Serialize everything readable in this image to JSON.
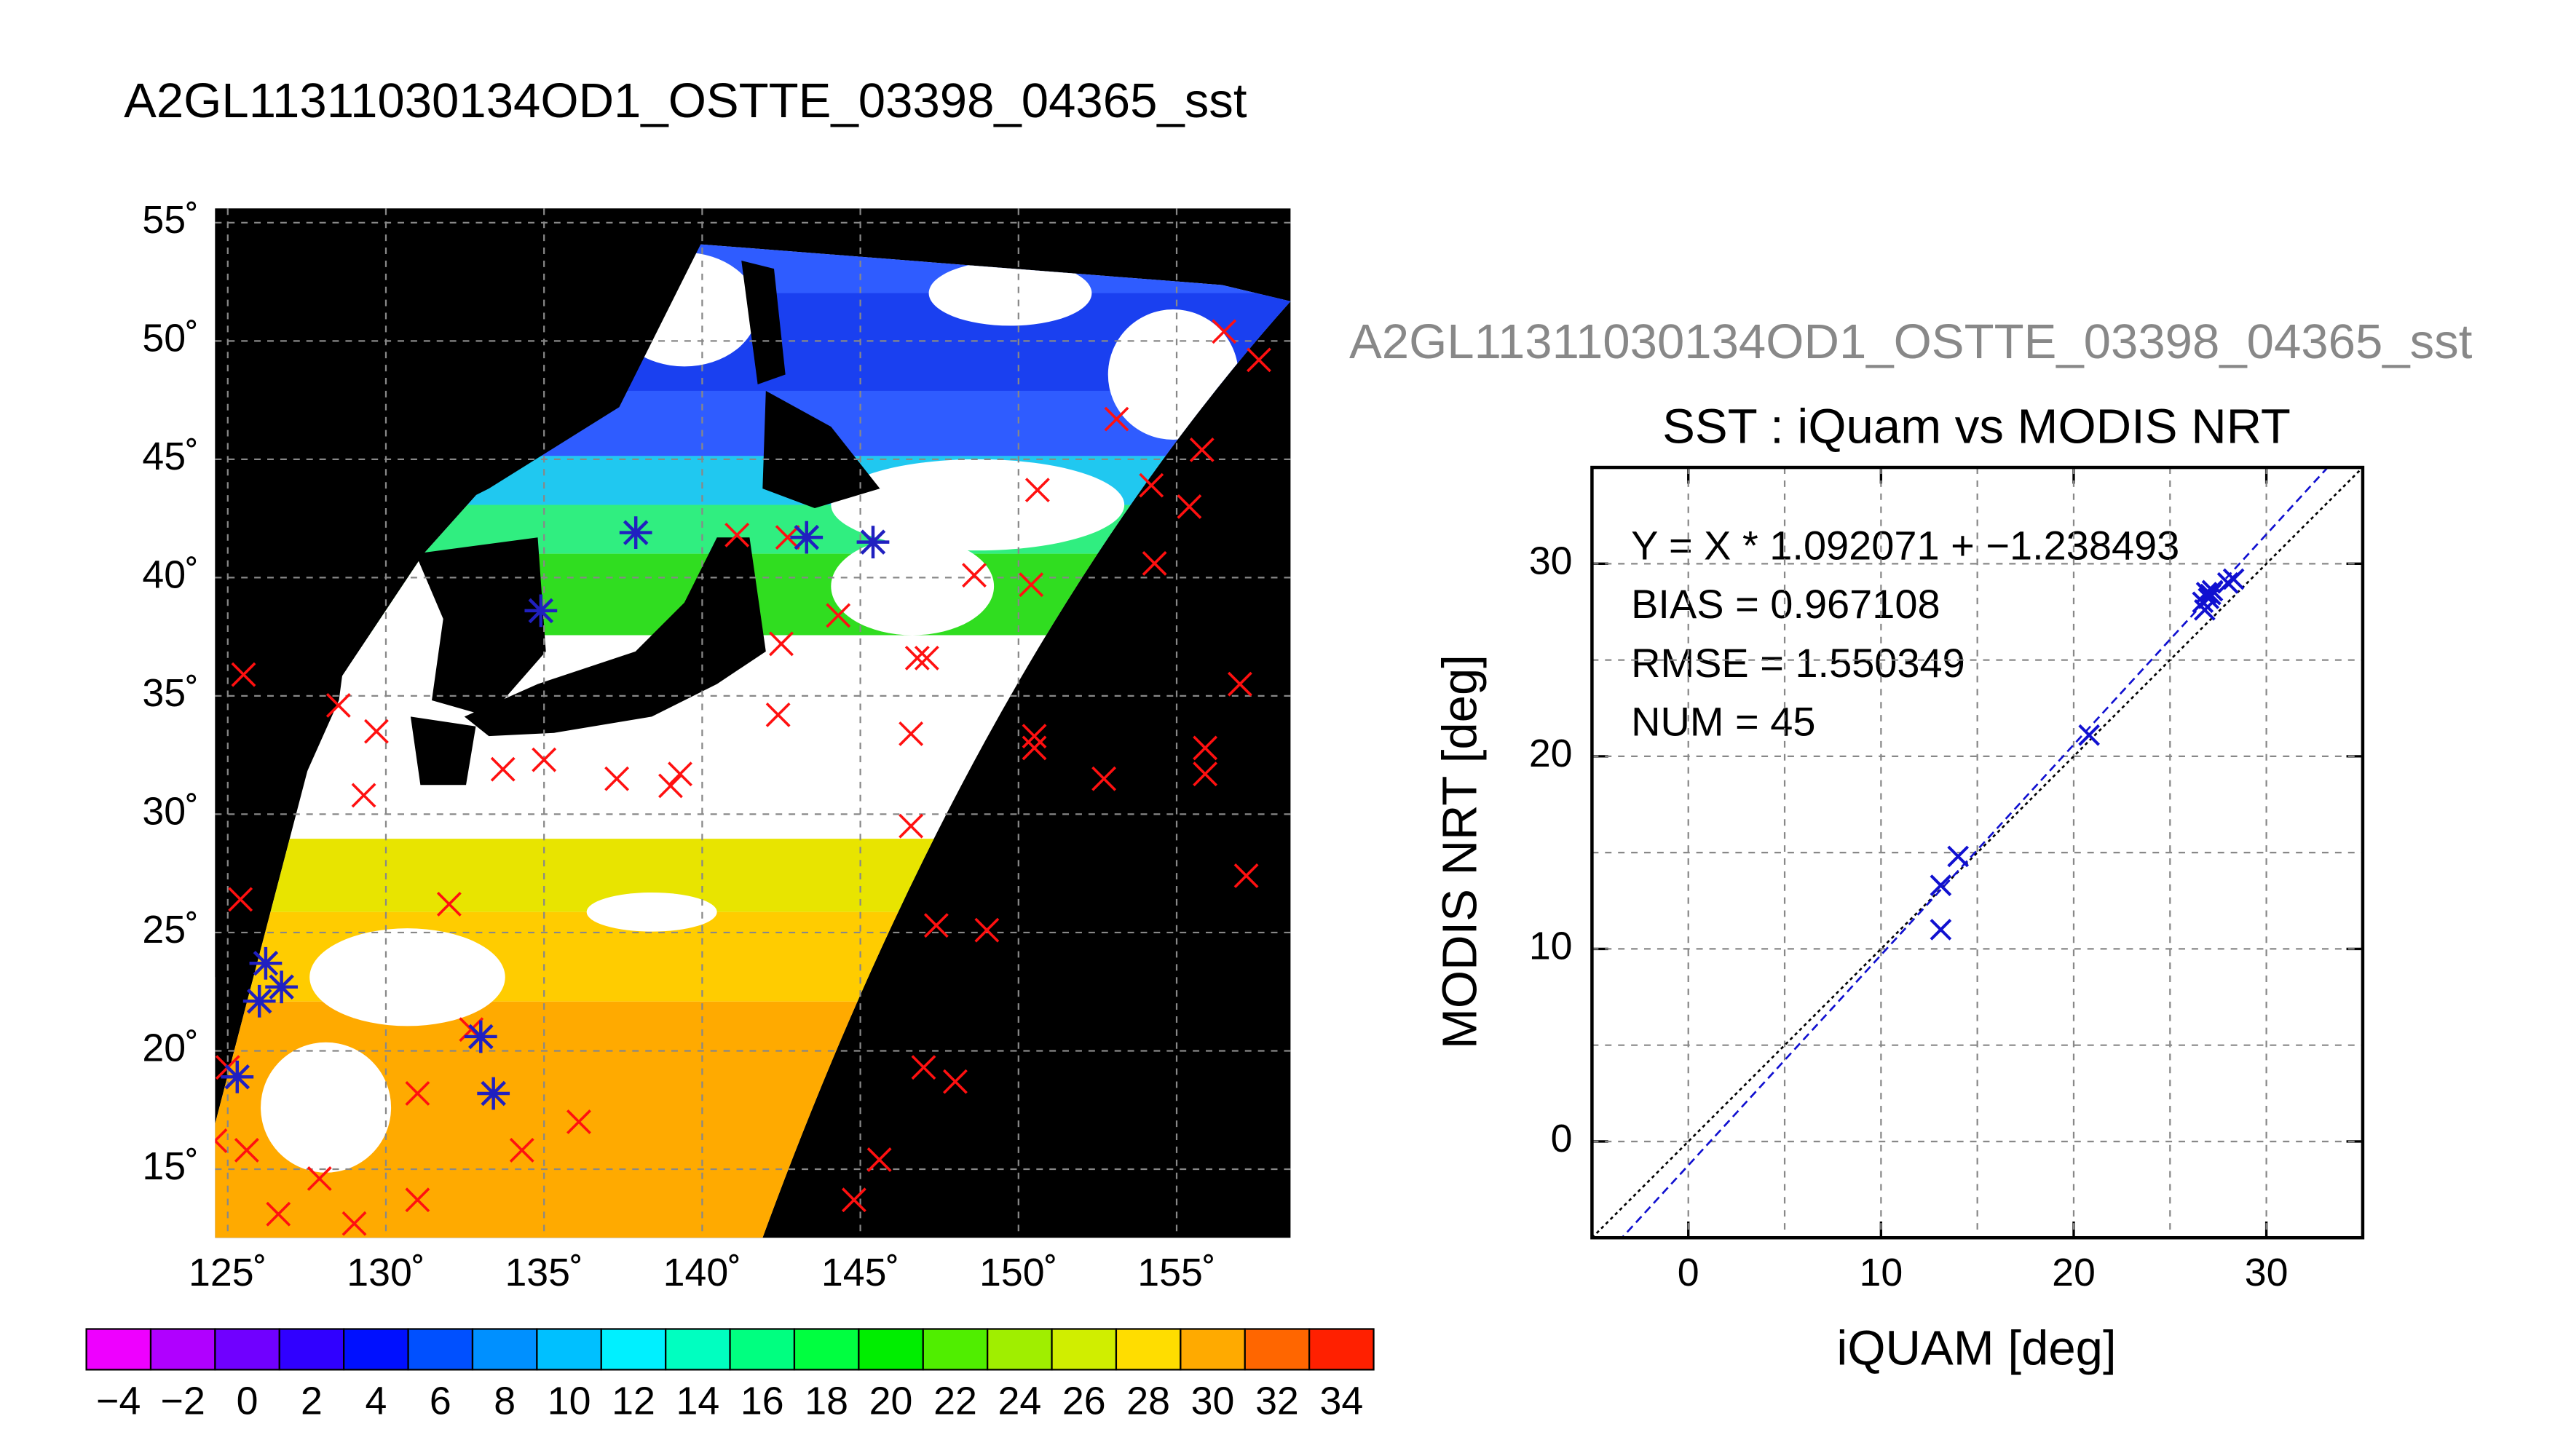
{
  "chart_data": [
    {
      "type": "map",
      "title": "A2GL11311030134OD1_OSTTE_03398_04365_sst",
      "xlim": [
        124.6,
        158.6
      ],
      "ylim": [
        12.1,
        55.6
      ],
      "xticks": [
        {
          "value": 125,
          "label": "125˚"
        },
        {
          "value": 130,
          "label": "130˚"
        },
        {
          "value": 135,
          "label": "135˚"
        },
        {
          "value": 140,
          "label": "140˚"
        },
        {
          "value": 145,
          "label": "145˚"
        },
        {
          "value": 150,
          "label": "150˚"
        },
        {
          "value": 155,
          "label": "155˚"
        }
      ],
      "yticks": [
        {
          "value": 15,
          "label": "15˚"
        },
        {
          "value": 20,
          "label": "20˚"
        },
        {
          "value": 25,
          "label": "25˚"
        },
        {
          "value": 30,
          "label": "30˚"
        },
        {
          "value": 35,
          "label": "35˚"
        },
        {
          "value": 40,
          "label": "40˚"
        },
        {
          "value": 45,
          "label": "45˚"
        },
        {
          "value": 50,
          "label": "50˚"
        },
        {
          "value": 55,
          "label": "55˚"
        }
      ],
      "grid": true,
      "series": [
        {
          "color": "#ff1010",
          "marker": "x",
          "x": [
            125.5,
            125.4,
            125.0,
            125.6,
            126.6,
            127.9,
            129.0,
            128.5,
            129.7,
            129.3,
            132.0,
            131.0,
            131.0,
            132.7,
            133.7,
            135.0,
            134.3,
            136.1,
            137.3,
            139.0,
            139.3,
            141.1,
            142.7,
            142.5,
            142.4,
            144.3,
            144.8,
            145.6,
            146.6,
            146.6,
            146.8,
            147.1,
            147.4,
            147.0,
            148.0,
            149.0,
            148.6,
            150.4,
            150.6,
            150.5,
            150.5,
            152.7,
            153.1,
            154.2,
            155.4,
            155.8,
            154.3,
            156.5,
            157.6,
            157.0,
            155.9,
            155.9,
            157.2,
            124.6
          ],
          "y": [
            35.9,
            26.4,
            19.3,
            15.8,
            13.1,
            14.6,
            12.7,
            34.6,
            33.5,
            30.8,
            26.2,
            18.2,
            13.7,
            20.9,
            31.9,
            32.3,
            15.8,
            17.0,
            31.5,
            31.2,
            31.7,
            41.8,
            41.7,
            37.2,
            34.2,
            38.4,
            13.7,
            15.4,
            33.4,
            29.5,
            36.6,
            36.6,
            25.3,
            19.3,
            18.7,
            25.1,
            40.1,
            39.7,
            43.7,
            32.8,
            33.3,
            31.5,
            46.7,
            43.9,
            43.0,
            45.4,
            40.6,
            50.4,
            49.2,
            35.5,
            32.8,
            31.7,
            27.4,
            16.2
          ]
        },
        {
          "color": "#2020c0",
          "marker": "asterisk",
          "x": [
            137.9,
            134.9,
            143.3,
            145.4,
            133.0,
            133.4,
            126.0,
            126.2,
            126.7,
            125.3
          ],
          "y": [
            41.9,
            38.6,
            41.7,
            41.5,
            20.6,
            18.2,
            22.1,
            23.7,
            22.7,
            18.9
          ]
        }
      ],
      "colorbar": {
        "lim": [
          -5,
          35
        ],
        "colors": [
          "#ee00ff",
          "#b000ff",
          "#7000ff",
          "#3000ff",
          "#0010ff",
          "#0050ff",
          "#0090ff",
          "#00c0ff",
          "#00f0ff",
          "#00ffc0",
          "#00ff80",
          "#00ff40",
          "#00ee00",
          "#50ee00",
          "#a0ee00",
          "#d0ee00",
          "#ffdd00",
          "#ffaa00",
          "#ff6600",
          "#ff2000"
        ],
        "ticks": [
          {
            "value": -4,
            "label": "−4"
          },
          {
            "value": -2,
            "label": "−2"
          },
          0,
          2,
          4,
          6,
          8,
          10,
          12,
          14,
          16,
          18,
          20,
          22,
          24,
          26,
          28,
          30,
          32,
          34
        ]
      }
    },
    {
      "type": "scatter",
      "header": "A2GL11311030134OD1_OSTTE_03398_04365_sst",
      "title": "SST : iQuam vs MODIS NRT",
      "xlabel": "iQUAM [deg]",
      "ylabel": "MODIS NRT [deg]",
      "annotations": [
        "Y = X * 1.092071 + −1.238493",
        "BIAS = 0.967108",
        "RMSE = 1.550349",
        "NUM = 45"
      ],
      "xlim": [
        -5,
        35
      ],
      "ylim": [
        -5,
        35
      ],
      "xticks": [
        0,
        10,
        20,
        30
      ],
      "yticks": [
        0,
        10,
        20,
        30
      ],
      "grid": [
        0,
        5,
        10,
        15,
        20,
        25,
        30
      ],
      "color": "#1010d0",
      "x": [
        13.1,
        13.1,
        14.0,
        20.8,
        26.9,
        27.0,
        26.8,
        26.7,
        27.2,
        28.0,
        28.3,
        27.1
      ],
      "y": [
        13.3,
        11.0,
        14.8,
        21.1,
        28.5,
        28.2,
        27.6,
        28.0,
        28.6,
        29.0,
        29.2,
        28.4
      ],
      "fit": {
        "slope": 1.092071,
        "intercept": -1.238493,
        "color": "#1010d0"
      },
      "identity_color": "#000000"
    }
  ]
}
